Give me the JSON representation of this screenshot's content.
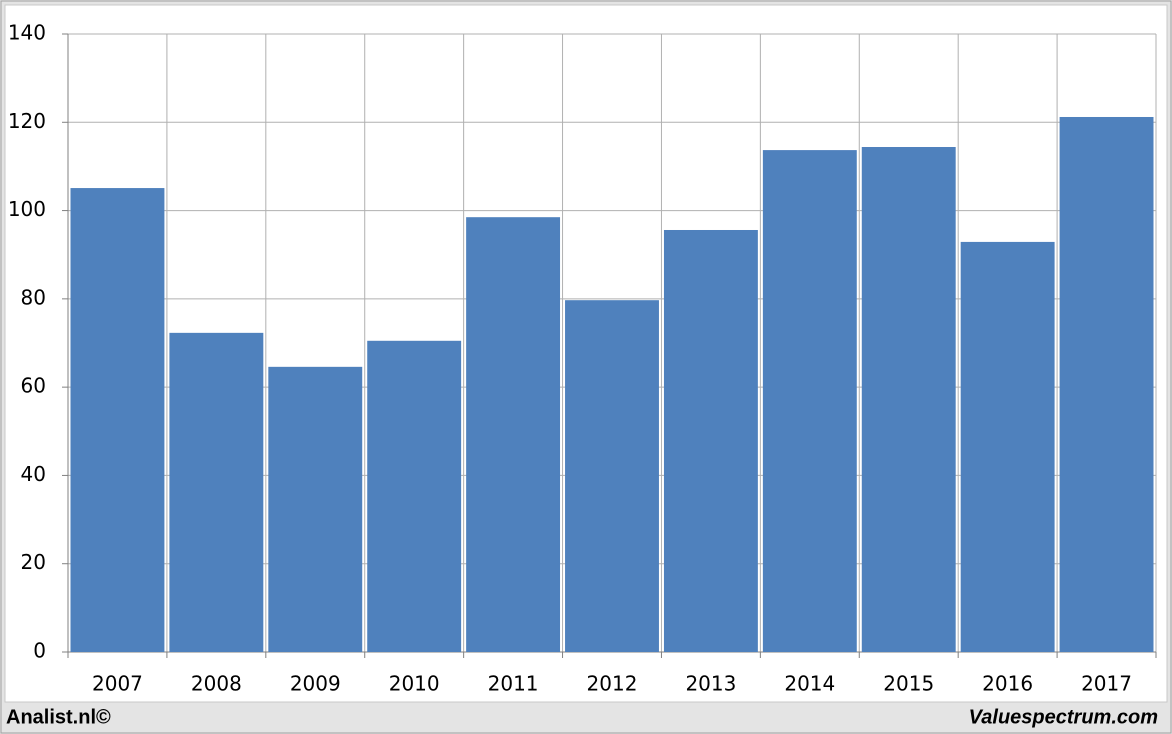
{
  "chart_data": {
    "type": "bar",
    "categories": [
      "2007",
      "2008",
      "2009",
      "2010",
      "2011",
      "2012",
      "2013",
      "2014",
      "2015",
      "2016",
      "2017"
    ],
    "values": [
      105.1,
      72.3,
      64.6,
      70.5,
      98.5,
      79.7,
      95.6,
      113.7,
      114.4,
      92.9,
      121.2
    ],
    "color": "#4f81bd",
    "ylim": [
      0,
      140
    ],
    "yticks": [
      0,
      20,
      40,
      60,
      80,
      100,
      120,
      140
    ],
    "grid": true,
    "source_left": "Analist.nl©",
    "source_right": "Valuespectrum.com"
  }
}
